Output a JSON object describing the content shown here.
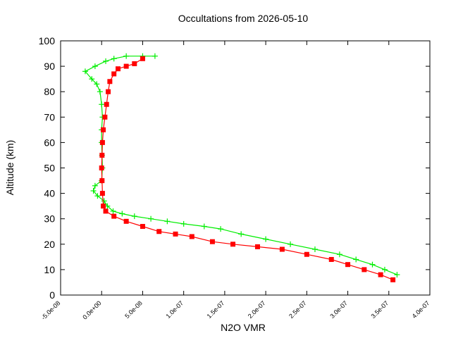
{
  "chart_data": {
    "type": "scatter",
    "title": "Occultations from 2026-05-10",
    "xlabel": "N2O VMR",
    "ylabel": "Altitude (km)",
    "xlim": [
      -5e-08,
      4e-07
    ],
    "ylim": [
      0,
      100
    ],
    "x_ticks": [
      -5e-08,
      0,
      5e-08,
      1e-07,
      1.5e-07,
      2e-07,
      2.5e-07,
      3e-07,
      3.5e-07,
      4e-07
    ],
    "x_tick_labels": [
      "-5.0e-08",
      "0.0e+00",
      "5.0e-08",
      "1.0e-07",
      "1.5e-07",
      "2.0e-07",
      "2.5e-07",
      "3.0e-07",
      "3.5e-07",
      "4.0e-07"
    ],
    "y_ticks": [
      0,
      10,
      20,
      30,
      40,
      50,
      60,
      70,
      80,
      90,
      100
    ],
    "y_tick_labels": [
      "0",
      "10",
      "20",
      "30",
      "40",
      "50",
      "60",
      "70",
      "80",
      "90",
      "100"
    ],
    "grid": false,
    "legend": "none",
    "series": [
      {
        "color": "#00ee00",
        "marker": "plus",
        "x": [
          3.6e-07,
          3.45e-07,
          3.3e-07,
          3.1e-07,
          2.9e-07,
          2.6e-07,
          2.3e-07,
          2e-07,
          1.7e-07,
          1.45e-07,
          1.25e-07,
          1e-07,
          8e-08,
          6e-08,
          4e-08,
          2.5e-08,
          1.4e-08,
          7e-09,
          3e-09,
          -5e-09,
          -1e-08,
          -8e-09,
          0,
          1e-09,
          5e-10,
          0,
          0,
          1e-09,
          0,
          -2e-09,
          -6e-09,
          -1.2e-08,
          -2e-08,
          -8e-09,
          5e-09,
          1.5e-08,
          3e-08,
          5e-08,
          6.5e-08
        ],
        "y": [
          8,
          10,
          12,
          14,
          16,
          18,
          20,
          22,
          24,
          26,
          27,
          28,
          29,
          30,
          31,
          32,
          33,
          35,
          37,
          39,
          41,
          43,
          45,
          50,
          55,
          60,
          65,
          70,
          75,
          80,
          83,
          85,
          88,
          90,
          92,
          93,
          94,
          94,
          94
        ]
      },
      {
        "color": "#ff0000",
        "marker": "square",
        "x": [
          3.55e-07,
          3.4e-07,
          3.2e-07,
          3e-07,
          2.8e-07,
          2.5e-07,
          2.2e-07,
          1.9e-07,
          1.6e-07,
          1.35e-07,
          1.1e-07,
          9e-08,
          7e-08,
          5e-08,
          3e-08,
          1.5e-08,
          5e-09,
          2e-09,
          1e-09,
          5e-10,
          0,
          5e-10,
          1e-09,
          2e-09,
          4e-09,
          6e-09,
          8e-09,
          1e-08,
          1.5e-08,
          2e-08,
          3e-08,
          4e-08,
          5e-08
        ],
        "y": [
          6,
          8,
          10,
          12,
          14,
          16,
          18,
          19,
          20,
          21,
          23,
          24,
          25,
          27,
          29,
          31,
          33,
          35,
          40,
          45,
          50,
          55,
          60,
          65,
          70,
          75,
          80,
          84,
          87,
          89,
          90,
          91,
          93
        ]
      }
    ]
  }
}
